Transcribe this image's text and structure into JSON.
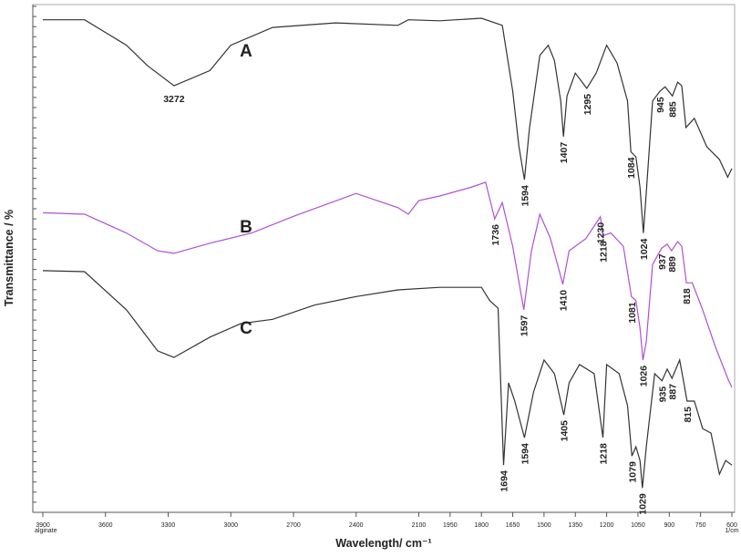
{
  "chart_data": {
    "type": "line",
    "xlabel": "Wavelength/ cm⁻¹",
    "ylabel": "Transmittance / %",
    "x_axis_start_label": "alginate",
    "x_axis_end_label": "1/cm",
    "xlim": [
      3900,
      600
    ],
    "x_scale_change_at": 2000,
    "ylim": [
      0,
      100
    ],
    "xticks": [
      3900,
      3600,
      3300,
      3000,
      2700,
      2400,
      2100,
      1950,
      1800,
      1650,
      1500,
      1350,
      1200,
      1050,
      900,
      750,
      600
    ],
    "series": [
      {
        "name": "A",
        "color": "#333333",
        "x": [
          3900,
          3700,
          3500,
          3400,
          3272,
          3100,
          3000,
          2800,
          2500,
          2200,
          2150,
          2000,
          1800,
          1700,
          1650,
          1620,
          1594,
          1570,
          1520,
          1480,
          1450,
          1420,
          1407,
          1390,
          1350,
          1295,
          1250,
          1200,
          1150,
          1100,
          1084,
          1060,
          1040,
          1024,
          1010,
          980,
          945,
          920,
          885,
          860,
          840,
          820,
          780,
          720,
          660,
          620,
          600
        ],
        "values": [
          97,
          97,
          92,
          88,
          84,
          87,
          92,
          95.5,
          96.4,
          95.9,
          97,
          96.8,
          97.3,
          95.9,
          83,
          72,
          65.5,
          75.6,
          90,
          92,
          89,
          81,
          74,
          82,
          86.5,
          83.5,
          86.5,
          92,
          88.5,
          81,
          71,
          70,
          64,
          55,
          63,
          81,
          82.9,
          83.8,
          82,
          84.7,
          84,
          75.8,
          77.6,
          72,
          69.5,
          66,
          67.7
        ],
        "peaks": [
          3272,
          1594,
          1407,
          1295,
          1084,
          1024,
          945,
          885
        ]
      },
      {
        "name": "B",
        "color": "#b04fd0",
        "x": [
          3900,
          3700,
          3500,
          3350,
          3272,
          3100,
          2900,
          2700,
          2400,
          2200,
          2150,
          2100,
          2000,
          1850,
          1780,
          1736,
          1700,
          1650,
          1597,
          1560,
          1520,
          1470,
          1430,
          1410,
          1380,
          1300,
          1230,
          1218,
          1180,
          1120,
          1081,
          1060,
          1040,
          1026,
          1010,
          980,
          937,
          910,
          889,
          860,
          840,
          818,
          790,
          740,
          680,
          620,
          600
        ],
        "values": [
          59,
          58.7,
          55,
          51.5,
          51,
          53,
          55,
          58.3,
          62.8,
          60,
          58.7,
          61.4,
          62.3,
          64,
          65,
          57.8,
          61,
          52.4,
          39.9,
          51.5,
          58.7,
          54,
          48,
          44.9,
          51.5,
          53.9,
          58.2,
          54.5,
          55,
          52.4,
          42.5,
          41.7,
          36.3,
          30,
          33.6,
          48.8,
          52,
          52.8,
          51.5,
          53.3,
          52.4,
          45.2,
          45.2,
          39.9,
          32.7,
          26.4,
          24.6
        ],
        "peaks": [
          1736,
          1597,
          1410,
          1218,
          1230,
          1081,
          1026,
          937,
          889,
          818
        ]
      },
      {
        "name": "C",
        "color": "#333333",
        "x": [
          3900,
          3700,
          3500,
          3350,
          3272,
          3100,
          2950,
          2800,
          2600,
          2400,
          2200,
          2000,
          1800,
          1760,
          1720,
          1694,
          1670,
          1640,
          1594,
          1550,
          1500,
          1450,
          1405,
          1380,
          1330,
          1260,
          1218,
          1200,
          1140,
          1100,
          1079,
          1060,
          1040,
          1029,
          1010,
          970,
          935,
          910,
          887,
          850,
          830,
          815,
          780,
          740,
          700,
          660,
          630,
          600
        ],
        "values": [
          47.6,
          47.4,
          39.9,
          31.8,
          30.5,
          34.5,
          37.2,
          38,
          40.8,
          42.5,
          43.8,
          44.3,
          44.3,
          41.7,
          40.2,
          9.3,
          25.5,
          21.9,
          14.7,
          23.7,
          30,
          27.3,
          19.2,
          25.5,
          29.1,
          27.3,
          14.7,
          29.1,
          27.3,
          21,
          11.1,
          12.9,
          10.2,
          4.8,
          12.9,
          27.3,
          25.9,
          28.2,
          26.4,
          30,
          25.5,
          21.9,
          21.9,
          16.5,
          15.6,
          7.5,
          10.2,
          9.3
        ],
        "peaks": [
          1694,
          1594,
          1405,
          1218,
          1079,
          1029,
          935,
          887,
          815
        ]
      }
    ]
  }
}
